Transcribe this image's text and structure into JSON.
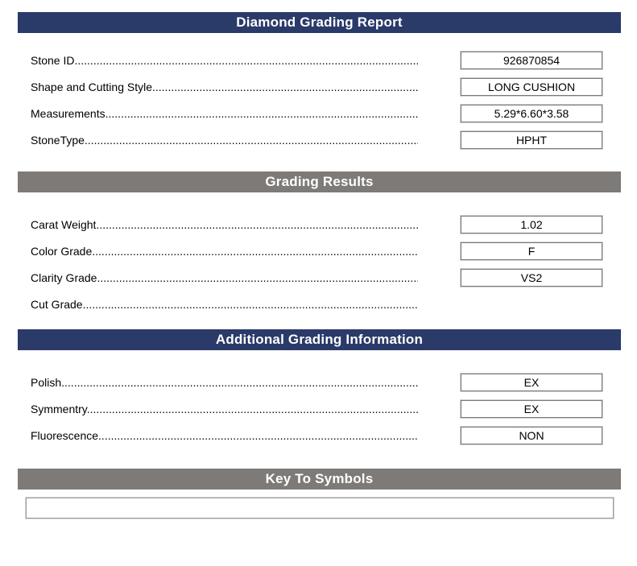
{
  "page_title": "Diamond Grading Report",
  "colors": {
    "header_navy": "#2a3a69",
    "header_gray": "#7d7a78",
    "box_border_inner": "#787878",
    "box_border_outer": "#d0d0d0",
    "text": "#000000"
  },
  "leader_dots": "........................................................................................................................................................................................................................................................................",
  "sections": [
    {
      "header": "Diamond Grading Report",
      "theme": "navy",
      "rows": [
        {
          "label": "Stone ID",
          "value": "926870854"
        },
        {
          "label": "Shape and Cutting Style",
          "value": "LONG CUSHION"
        },
        {
          "label": "Measurements",
          "value": "5.29*6.60*3.58"
        },
        {
          "label": "StoneType",
          "value": "HPHT"
        }
      ]
    },
    {
      "header": "Grading Results",
      "theme": "gray",
      "rows": [
        {
          "label": "Carat Weight",
          "value": "1.02"
        },
        {
          "label": "Color Grade",
          "value": "F"
        },
        {
          "label": "Clarity Grade",
          "value": "VS2"
        },
        {
          "label": "Cut Grade",
          "value": ""
        }
      ]
    },
    {
      "header": "Additional Grading Information",
      "theme": "navy",
      "rows": [
        {
          "label": "Polish",
          "value": "EX"
        },
        {
          "label": "Symmentry",
          "value": "EX"
        },
        {
          "label": "Fluorescence",
          "value": "NON"
        }
      ]
    },
    {
      "header": "Key To Symbols",
      "theme": "gray",
      "rows": []
    }
  ]
}
